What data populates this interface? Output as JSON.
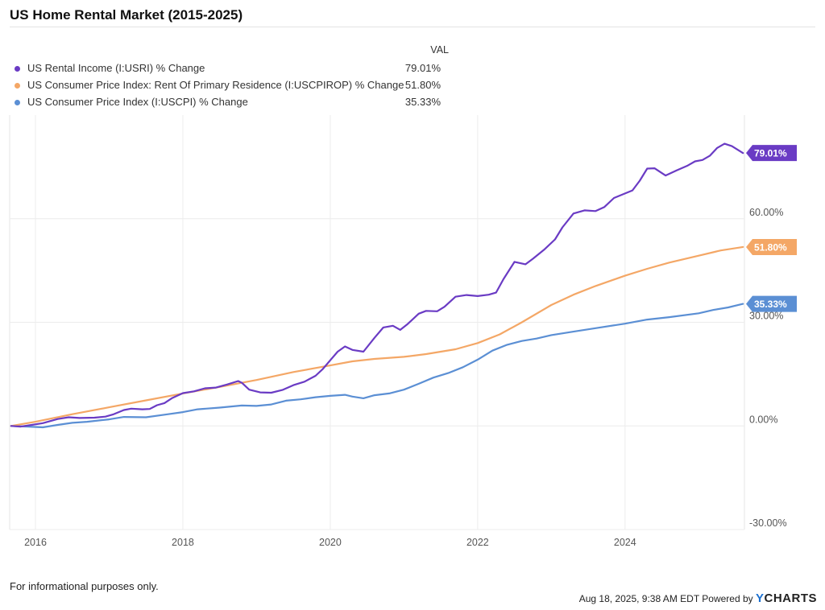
{
  "title": "US Home Rental Market (2015-2025)",
  "legend_header": "VAL",
  "footer": {
    "disclaimer": "For informational purposes only.",
    "timestamp": "Aug 18, 2025, 9:38 AM EDT Powered by",
    "brand_y": "Y",
    "brand_rest": "CHARTS"
  },
  "chart_data": {
    "type": "line",
    "title": "US Home Rental Market (2015-2025)",
    "xlabel": "",
    "ylabel": "",
    "xlim": [
      2015.65,
      2025.62
    ],
    "ylim": [
      -30,
      90
    ],
    "x_ticks": [
      2016,
      2018,
      2020,
      2022,
      2024
    ],
    "x_tick_labels": [
      "2016",
      "2018",
      "2020",
      "2022",
      "2024"
    ],
    "y_ticks": [
      -30,
      0,
      30,
      60
    ],
    "y_tick_labels": [
      "-30.00%",
      "0.00%",
      "30.00%",
      "60.00%"
    ],
    "grid": true,
    "series": [
      {
        "name": "US Rental Income (I:USRI) % Change",
        "color": "#6a3bc4",
        "last_label": "79.01%",
        "points": [
          [
            2015.67,
            0
          ],
          [
            2015.8,
            -0.2
          ],
          [
            2015.95,
            0.3
          ],
          [
            2016.1,
            0.8
          ],
          [
            2016.3,
            2
          ],
          [
            2016.45,
            2.5
          ],
          [
            2016.6,
            2.3
          ],
          [
            2016.8,
            2.4
          ],
          [
            2016.95,
            2.7
          ],
          [
            2017.05,
            3.3
          ],
          [
            2017.2,
            4.6
          ],
          [
            2017.3,
            5
          ],
          [
            2017.45,
            4.8
          ],
          [
            2017.55,
            4.9
          ],
          [
            2017.65,
            6
          ],
          [
            2017.75,
            6.6
          ],
          [
            2017.85,
            8
          ],
          [
            2018.0,
            9.5
          ],
          [
            2018.15,
            10
          ],
          [
            2018.3,
            10.9
          ],
          [
            2018.45,
            11.1
          ],
          [
            2018.6,
            12
          ],
          [
            2018.75,
            13
          ],
          [
            2018.8,
            12.5
          ],
          [
            2018.9,
            10.5
          ],
          [
            2019.05,
            9.7
          ],
          [
            2019.2,
            9.6
          ],
          [
            2019.35,
            10.4
          ],
          [
            2019.5,
            11.8
          ],
          [
            2019.65,
            12.8
          ],
          [
            2019.8,
            14.5
          ],
          [
            2019.9,
            16.5
          ],
          [
            2020.0,
            19
          ],
          [
            2020.1,
            21.5
          ],
          [
            2020.2,
            23
          ],
          [
            2020.3,
            22
          ],
          [
            2020.45,
            21.5
          ],
          [
            2020.6,
            25.5
          ],
          [
            2020.72,
            28.5
          ],
          [
            2020.85,
            29
          ],
          [
            2020.95,
            27.8
          ],
          [
            2021.05,
            29.5
          ],
          [
            2021.2,
            32.5
          ],
          [
            2021.3,
            33.3
          ],
          [
            2021.45,
            33.2
          ],
          [
            2021.55,
            34.5
          ],
          [
            2021.7,
            37.4
          ],
          [
            2021.85,
            37.9
          ],
          [
            2022.0,
            37.6
          ],
          [
            2022.15,
            38
          ],
          [
            2022.25,
            38.6
          ],
          [
            2022.35,
            42.5
          ],
          [
            2022.5,
            47.5
          ],
          [
            2022.65,
            46.8
          ],
          [
            2022.75,
            48.4
          ],
          [
            2022.9,
            51
          ],
          [
            2023.05,
            54
          ],
          [
            2023.15,
            57.5
          ],
          [
            2023.3,
            61.5
          ],
          [
            2023.45,
            62.4
          ],
          [
            2023.6,
            62.2
          ],
          [
            2023.72,
            63.4
          ],
          [
            2023.85,
            66
          ],
          [
            2024.0,
            67.3
          ],
          [
            2024.1,
            68.2
          ],
          [
            2024.2,
            71
          ],
          [
            2024.3,
            74.5
          ],
          [
            2024.4,
            74.6
          ],
          [
            2024.55,
            72.5
          ],
          [
            2024.7,
            74
          ],
          [
            2024.85,
            75.4
          ],
          [
            2024.95,
            76.6
          ],
          [
            2025.05,
            77
          ],
          [
            2025.15,
            78.2
          ],
          [
            2025.25,
            80.5
          ],
          [
            2025.35,
            81.7
          ],
          [
            2025.45,
            81
          ],
          [
            2025.6,
            79.01
          ]
        ]
      },
      {
        "name": "US Consumer Price Index: Rent Of Primary Residence (I:USCPIROP) % Change",
        "color": "#f4a766",
        "last_label": "51.80%",
        "points": [
          [
            2015.67,
            0
          ],
          [
            2016.0,
            1.2
          ],
          [
            2016.5,
            3.4
          ],
          [
            2017.0,
            5.4
          ],
          [
            2017.5,
            7.4
          ],
          [
            2018.0,
            9.4
          ],
          [
            2018.5,
            11.3
          ],
          [
            2019.0,
            13.3
          ],
          [
            2019.5,
            15.6
          ],
          [
            2020.0,
            17.5
          ],
          [
            2020.3,
            18.7
          ],
          [
            2020.6,
            19.4
          ],
          [
            2021.0,
            20
          ],
          [
            2021.3,
            20.8
          ],
          [
            2021.7,
            22.2
          ],
          [
            2022.0,
            24
          ],
          [
            2022.3,
            26.5
          ],
          [
            2022.6,
            30
          ],
          [
            2023.0,
            35
          ],
          [
            2023.3,
            38
          ],
          [
            2023.6,
            40.5
          ],
          [
            2024.0,
            43.5
          ],
          [
            2024.3,
            45.5
          ],
          [
            2024.6,
            47.3
          ],
          [
            2025.0,
            49.3
          ],
          [
            2025.3,
            50.8
          ],
          [
            2025.6,
            51.8
          ]
        ]
      },
      {
        "name": "US Consumer Price Index (I:USCPI) % Change",
        "color": "#5b8fd4",
        "last_label": "35.33%",
        "points": [
          [
            2015.67,
            0
          ],
          [
            2015.9,
            -0.2
          ],
          [
            2016.1,
            -0.4
          ],
          [
            2016.3,
            0.3
          ],
          [
            2016.5,
            0.9
          ],
          [
            2016.7,
            1.2
          ],
          [
            2017.0,
            1.9
          ],
          [
            2017.2,
            2.6
          ],
          [
            2017.5,
            2.5
          ],
          [
            2017.8,
            3.4
          ],
          [
            2018.0,
            4
          ],
          [
            2018.2,
            4.8
          ],
          [
            2018.5,
            5.3
          ],
          [
            2018.8,
            5.9
          ],
          [
            2019.0,
            5.8
          ],
          [
            2019.2,
            6.2
          ],
          [
            2019.4,
            7.3
          ],
          [
            2019.6,
            7.7
          ],
          [
            2019.8,
            8.3
          ],
          [
            2020.0,
            8.7
          ],
          [
            2020.2,
            9
          ],
          [
            2020.3,
            8.5
          ],
          [
            2020.45,
            8
          ],
          [
            2020.6,
            8.9
          ],
          [
            2020.8,
            9.4
          ],
          [
            2021.0,
            10.5
          ],
          [
            2021.2,
            12.2
          ],
          [
            2021.4,
            14
          ],
          [
            2021.6,
            15.3
          ],
          [
            2021.8,
            17
          ],
          [
            2022.0,
            19.2
          ],
          [
            2022.2,
            21.8
          ],
          [
            2022.4,
            23.5
          ],
          [
            2022.6,
            24.6
          ],
          [
            2022.8,
            25.3
          ],
          [
            2023.0,
            26.3
          ],
          [
            2023.3,
            27.3
          ],
          [
            2023.6,
            28.3
          ],
          [
            2024.0,
            29.6
          ],
          [
            2024.3,
            30.8
          ],
          [
            2024.6,
            31.5
          ],
          [
            2025.0,
            32.6
          ],
          [
            2025.2,
            33.6
          ],
          [
            2025.4,
            34.3
          ],
          [
            2025.6,
            35.33
          ]
        ]
      }
    ]
  }
}
